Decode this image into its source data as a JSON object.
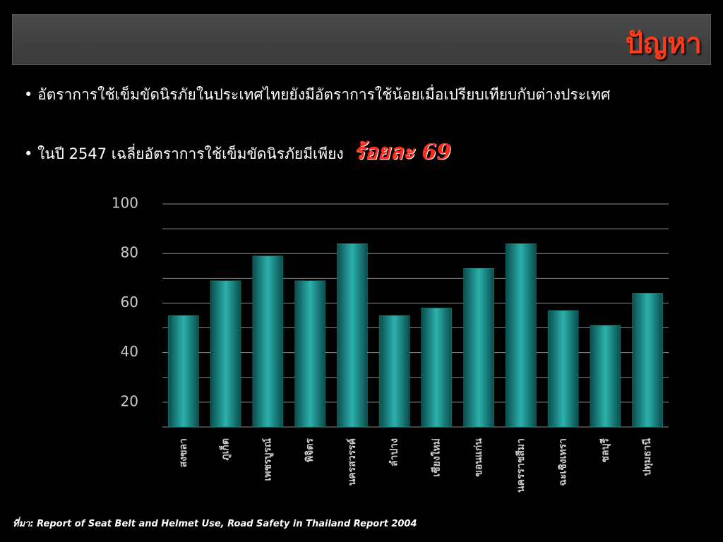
{
  "header": {
    "title": "ปัญหา"
  },
  "bullets": [
    {
      "text": "อัตราการใช้เข็มขัดนิรภัยในประเทศไทยยังมีอัตราการใช้น้อยเมื่อเปรียบเทียบกับต่างประเทศ"
    },
    {
      "text": "ในปี 2547 เฉลี่ยอัตราการใช้เข็มขัดนิรภัยมีเพียง",
      "highlight": "ร้อยละ 69"
    }
  ],
  "chart_data": {
    "type": "bar",
    "categories": [
      "สงขลา",
      "ภูเก็ต",
      "เพชรบูรณ์",
      "พิจิตร",
      "นครสวรรค์",
      "ลำปาง",
      "เชียงใหม่",
      "ขอนแก่น",
      "นครราชสีมา",
      "ฉะเชิงเทรา",
      "ชลบุรี",
      "ปทุมธานี"
    ],
    "values": [
      55,
      69,
      79,
      69,
      84,
      55,
      58,
      74,
      84,
      57,
      51,
      64
    ],
    "color": "#1a8c8a",
    "ylim": [
      10,
      100
    ],
    "yticks": [
      20,
      40,
      60,
      80,
      100
    ],
    "minor_yticks": [
      30,
      50,
      70,
      90
    ],
    "grid": true
  },
  "source": "ที่มา: Report of Seat Belt and Helmet Use, Road Safety in Thailand Report 2004"
}
